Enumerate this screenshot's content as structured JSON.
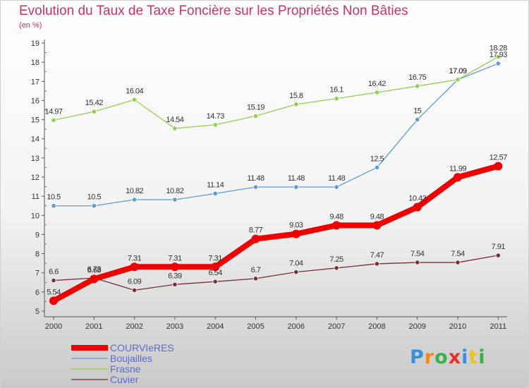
{
  "chart_data": {
    "type": "line",
    "title": "Evolution du Taux de Taxe Foncière sur les Propriétés Non Bâties",
    "subtitle": "(en %)",
    "categories": [
      "2000",
      "2001",
      "2002",
      "2003",
      "2004",
      "2005",
      "2006",
      "2007",
      "2008",
      "2009",
      "2010",
      "2011"
    ],
    "ylim": [
      5,
      19
    ],
    "yticks": [
      5,
      6,
      7,
      8,
      9,
      10,
      11,
      12,
      13,
      14,
      15,
      16,
      17,
      18,
      19
    ],
    "grid": false,
    "legend_position": "bottom-left",
    "series": [
      {
        "name": "COURVIeRES",
        "color": "#ee0000",
        "emphasis": true,
        "values": [
          5.54,
          6.68,
          7.31,
          7.31,
          7.31,
          8.77,
          9.03,
          9.48,
          9.48,
          10.43,
          11.99,
          12.57
        ],
        "labels": [
          "5.54",
          "6.68",
          "7.31",
          "7.31",
          "7.31",
          "8.77",
          "9.03",
          "9.48",
          "9.48",
          "10.43",
          "11.99",
          "12.57"
        ]
      },
      {
        "name": "Boujailles",
        "color": "#5b9bd5",
        "emphasis": false,
        "values": [
          10.5,
          10.5,
          10.82,
          10.82,
          11.14,
          11.48,
          11.48,
          11.48,
          12.5,
          15,
          17.09,
          17.93
        ],
        "labels": [
          "10.5",
          "10.5",
          "10.82",
          "10.82",
          "11.14",
          "11.48",
          "11.48",
          "11.48",
          "12.5",
          "15",
          "17.09",
          "17.93"
        ]
      },
      {
        "name": "Frasne",
        "color": "#8fd14f",
        "emphasis": false,
        "values": [
          14.97,
          15.42,
          16.04,
          14.54,
          14.73,
          15.19,
          15.8,
          16.1,
          16.42,
          16.75,
          17.09,
          18.28
        ],
        "labels": [
          "14.97",
          "15.42",
          "16.04",
          "14.54",
          "14.73",
          "15.19",
          "15.8",
          "16.1",
          "16.42",
          "16.75",
          "17.09",
          "18.28"
        ]
      },
      {
        "name": "Cuvier",
        "color": "#7a2f35",
        "emphasis": false,
        "values": [
          6.6,
          6.73,
          6.09,
          6.39,
          6.54,
          6.7,
          7.04,
          7.25,
          7.47,
          7.54,
          7.54,
          7.91
        ],
        "labels": [
          "6.6",
          "6.73",
          "6.09",
          "6.39",
          "6.54",
          "6.7",
          "7.04",
          "7.25",
          "7.47",
          "7.54",
          "7.54",
          "7.91"
        ]
      }
    ]
  },
  "logo": {
    "text": "Proxiti",
    "letter_colors": [
      "#3a8fd8",
      "#f08a1c",
      "#3ab04a",
      "#e8312b",
      "#3a8fd8",
      "#f0c419",
      "#3ab04a"
    ]
  }
}
